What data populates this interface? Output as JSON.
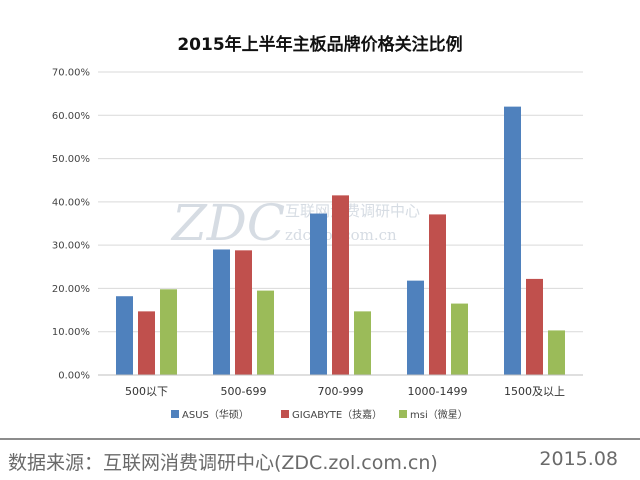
{
  "chart_data": {
    "type": "bar",
    "title": "2015年上半年主板品牌价格关注比例",
    "categories": [
      "500以下",
      "500-699",
      "700-999",
      "1000-1499",
      "1500及以上"
    ],
    "series": [
      {
        "name": "ASUS（华硕）",
        "color": "#4f81bd",
        "values": [
          18.2,
          29.0,
          37.3,
          21.8,
          62.0
        ]
      },
      {
        "name": "GIGABYTE（技嘉）",
        "color": "#c0504d",
        "values": [
          14.7,
          28.8,
          41.5,
          37.1,
          22.2
        ]
      },
      {
        "name": "msi（微星）",
        "color": "#9bbb59",
        "values": [
          19.8,
          19.5,
          14.7,
          16.5,
          10.3
        ]
      }
    ],
    "yticks": [
      "0.00%",
      "10.00%",
      "20.00%",
      "30.00%",
      "40.00%",
      "50.00%",
      "60.00%",
      "70.00%"
    ],
    "ylim": [
      0,
      70
    ],
    "xlabel": "",
    "ylabel": "",
    "grid": true,
    "legend_position": "bottom"
  },
  "watermark": {
    "logo": "ZDC",
    "name": "互联网消费调研中心",
    "url": "zdc.zol.com.cn"
  },
  "footer": {
    "source": "数据来源：互联网消费调研中心(ZDC.zol.com.cn)",
    "date": "2015.08"
  }
}
